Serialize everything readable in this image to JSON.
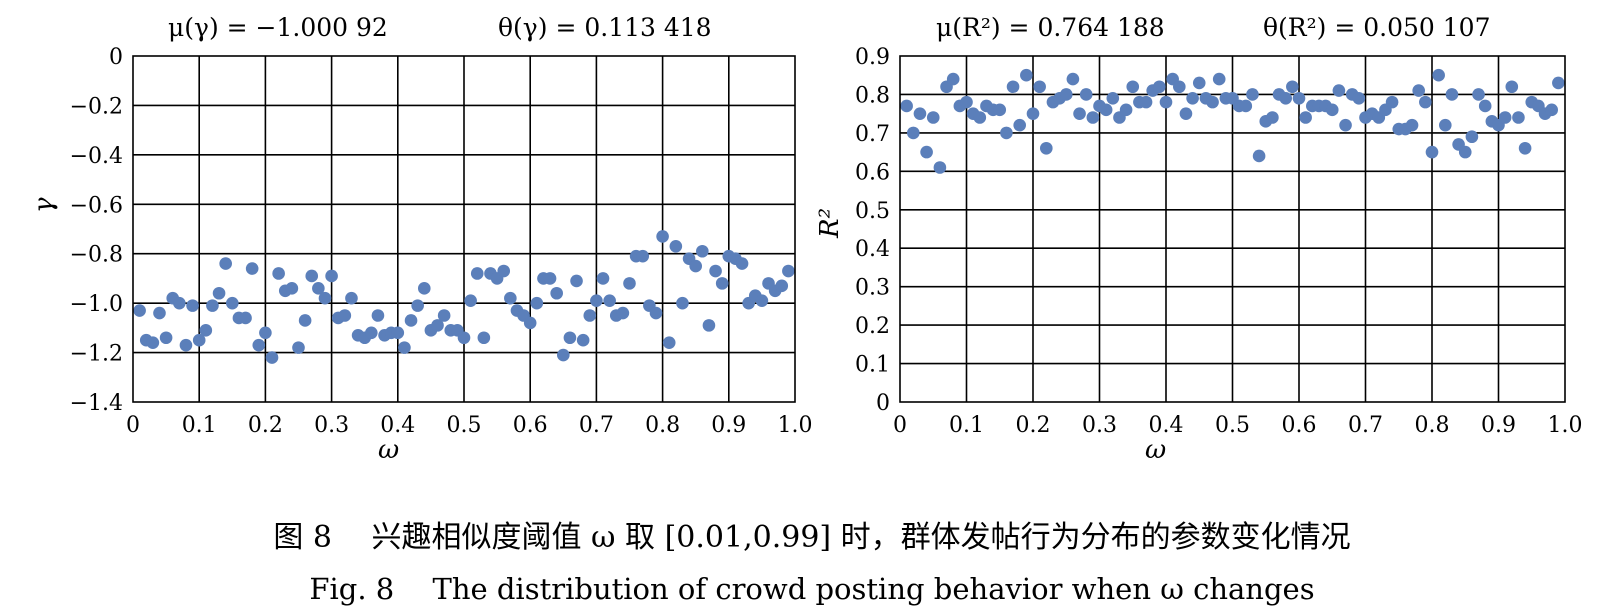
{
  "chart_data": [
    {
      "type": "scatter",
      "stat_mean": "μ(γ) = −1.000 92",
      "stat_sd": "θ(γ) = 0.113 418",
      "xlabel": "ω",
      "ylabel": "γ",
      "xlim": [
        0,
        1.0
      ],
      "ylim": [
        -1.4,
        0
      ],
      "xticks": [
        "0",
        "0.1",
        "0.2",
        "0.3",
        "0.4",
        "0.5",
        "0.6",
        "0.7",
        "0.8",
        "0.9",
        "1.0"
      ],
      "yticks": [
        "0",
        "−0.2",
        "−0.4",
        "−0.6",
        "−0.8",
        "−1.0",
        "−1.2",
        "−1.4"
      ],
      "grid": true,
      "color": "#5b7fba",
      "series": [
        {
          "x": [
            0.01,
            0.02,
            0.03,
            0.04,
            0.05,
            0.06,
            0.07,
            0.08,
            0.09,
            0.1,
            0.11,
            0.12,
            0.13,
            0.14,
            0.15,
            0.16,
            0.17,
            0.18,
            0.19,
            0.2,
            0.21,
            0.22,
            0.23,
            0.24,
            0.25,
            0.26,
            0.27,
            0.28,
            0.29,
            0.3,
            0.31,
            0.32,
            0.33,
            0.34,
            0.35,
            0.36,
            0.37,
            0.38,
            0.39,
            0.4,
            0.41,
            0.42,
            0.43,
            0.44,
            0.45,
            0.46,
            0.47,
            0.48,
            0.49,
            0.5,
            0.51,
            0.52,
            0.53,
            0.54,
            0.55,
            0.56,
            0.57,
            0.58,
            0.59,
            0.6,
            0.61,
            0.62,
            0.63,
            0.64,
            0.65,
            0.66,
            0.67,
            0.68,
            0.69,
            0.7,
            0.71,
            0.72,
            0.73,
            0.74,
            0.75,
            0.76,
            0.77,
            0.78,
            0.79,
            0.8,
            0.81,
            0.82,
            0.83,
            0.84,
            0.85,
            0.86,
            0.87,
            0.88,
            0.89,
            0.9,
            0.91,
            0.92,
            0.93,
            0.94,
            0.95,
            0.96,
            0.97,
            0.98,
            0.99
          ],
          "y": [
            -1.03,
            -1.15,
            -1.16,
            -1.04,
            -1.14,
            -0.98,
            -1.0,
            -1.17,
            -1.01,
            -1.15,
            -1.11,
            -1.01,
            -0.96,
            -0.84,
            -1.0,
            -1.06,
            -1.06,
            -0.86,
            -1.17,
            -1.12,
            -1.22,
            -0.88,
            -0.95,
            -0.94,
            -1.18,
            -1.07,
            -0.89,
            -0.94,
            -0.98,
            -0.89,
            -1.06,
            -1.05,
            -0.98,
            -1.13,
            -1.14,
            -1.12,
            -1.05,
            -1.13,
            -1.12,
            -1.12,
            -1.18,
            -1.07,
            -1.01,
            -0.94,
            -1.11,
            -1.09,
            -1.05,
            -1.11,
            -1.11,
            -1.14,
            -0.99,
            -0.88,
            -1.14,
            -0.88,
            -0.9,
            -0.87,
            -0.98,
            -1.03,
            -1.05,
            -1.08,
            -1.0,
            -0.9,
            -0.9,
            -0.96,
            -1.21,
            -1.14,
            -0.91,
            -1.15,
            -1.05,
            -0.99,
            -0.9,
            -0.99,
            -1.05,
            -1.04,
            -0.92,
            -0.81,
            -0.81,
            -1.01,
            -1.04,
            -0.73,
            -1.16,
            -0.77,
            -1.0,
            -0.82,
            -0.85,
            -0.79,
            -1.09,
            -0.87,
            -0.92,
            -0.81,
            -0.82,
            -0.84,
            -1.0,
            -0.97,
            -0.99,
            -0.92,
            -0.95,
            -0.93,
            -0.87
          ]
        }
      ]
    },
    {
      "type": "scatter",
      "stat_mean": "μ(R²) = 0.764 188",
      "stat_sd": "θ(R²) = 0.050 107",
      "xlabel": "ω",
      "ylabel": "R²",
      "xlim": [
        0,
        1.0
      ],
      "ylim": [
        0,
        0.9
      ],
      "xticks": [
        "0",
        "0.1",
        "0.2",
        "0.3",
        "0.4",
        "0.5",
        "0.6",
        "0.7",
        "0.8",
        "0.9",
        "1.0"
      ],
      "yticks": [
        "0",
        "0.1",
        "0.2",
        "0.3",
        "0.4",
        "0.5",
        "0.6",
        "0.7",
        "0.8",
        "0.9"
      ],
      "grid": true,
      "color": "#5b7fba",
      "series": [
        {
          "x": [
            0.01,
            0.02,
            0.03,
            0.04,
            0.05,
            0.06,
            0.07,
            0.08,
            0.09,
            0.1,
            0.11,
            0.12,
            0.13,
            0.14,
            0.15,
            0.16,
            0.17,
            0.18,
            0.19,
            0.2,
            0.21,
            0.22,
            0.23,
            0.24,
            0.25,
            0.26,
            0.27,
            0.28,
            0.29,
            0.3,
            0.31,
            0.32,
            0.33,
            0.34,
            0.35,
            0.36,
            0.37,
            0.38,
            0.39,
            0.4,
            0.41,
            0.42,
            0.43,
            0.44,
            0.45,
            0.46,
            0.47,
            0.48,
            0.49,
            0.5,
            0.51,
            0.52,
            0.53,
            0.54,
            0.55,
            0.56,
            0.57,
            0.58,
            0.59,
            0.6,
            0.61,
            0.62,
            0.63,
            0.64,
            0.65,
            0.66,
            0.67,
            0.68,
            0.69,
            0.7,
            0.71,
            0.72,
            0.73,
            0.74,
            0.75,
            0.76,
            0.77,
            0.78,
            0.79,
            0.8,
            0.81,
            0.82,
            0.83,
            0.84,
            0.85,
            0.86,
            0.87,
            0.88,
            0.89,
            0.9,
            0.91,
            0.92,
            0.93,
            0.94,
            0.95,
            0.96,
            0.97,
            0.98,
            0.99
          ],
          "y": [
            0.77,
            0.7,
            0.75,
            0.65,
            0.74,
            0.61,
            0.82,
            0.84,
            0.77,
            0.78,
            0.75,
            0.74,
            0.77,
            0.76,
            0.76,
            0.7,
            0.82,
            0.72,
            0.85,
            0.75,
            0.82,
            0.66,
            0.78,
            0.79,
            0.8,
            0.84,
            0.75,
            0.8,
            0.74,
            0.77,
            0.76,
            0.79,
            0.74,
            0.76,
            0.82,
            0.78,
            0.78,
            0.81,
            0.82,
            0.78,
            0.84,
            0.82,
            0.75,
            0.79,
            0.83,
            0.79,
            0.78,
            0.84,
            0.79,
            0.79,
            0.77,
            0.77,
            0.8,
            0.64,
            0.73,
            0.74,
            0.8,
            0.79,
            0.82,
            0.79,
            0.74,
            0.77,
            0.77,
            0.77,
            0.76,
            0.81,
            0.72,
            0.8,
            0.79,
            0.74,
            0.75,
            0.74,
            0.76,
            0.78,
            0.71,
            0.71,
            0.72,
            0.81,
            0.78,
            0.65,
            0.85,
            0.72,
            0.8,
            0.67,
            0.65,
            0.69,
            0.8,
            0.77,
            0.73,
            0.72,
            0.74,
            0.82,
            0.74,
            0.66,
            0.78,
            0.77,
            0.75,
            0.76,
            0.83
          ]
        }
      ]
    }
  ],
  "caption": {
    "zh": "图 8　 兴趣相似度阈值 ω 取 [0.01,0.99] 时，群体发帖行为分布的参数变化情况",
    "en": "Fig. 8　 The distribution of crowd posting behavior when ω changes"
  }
}
